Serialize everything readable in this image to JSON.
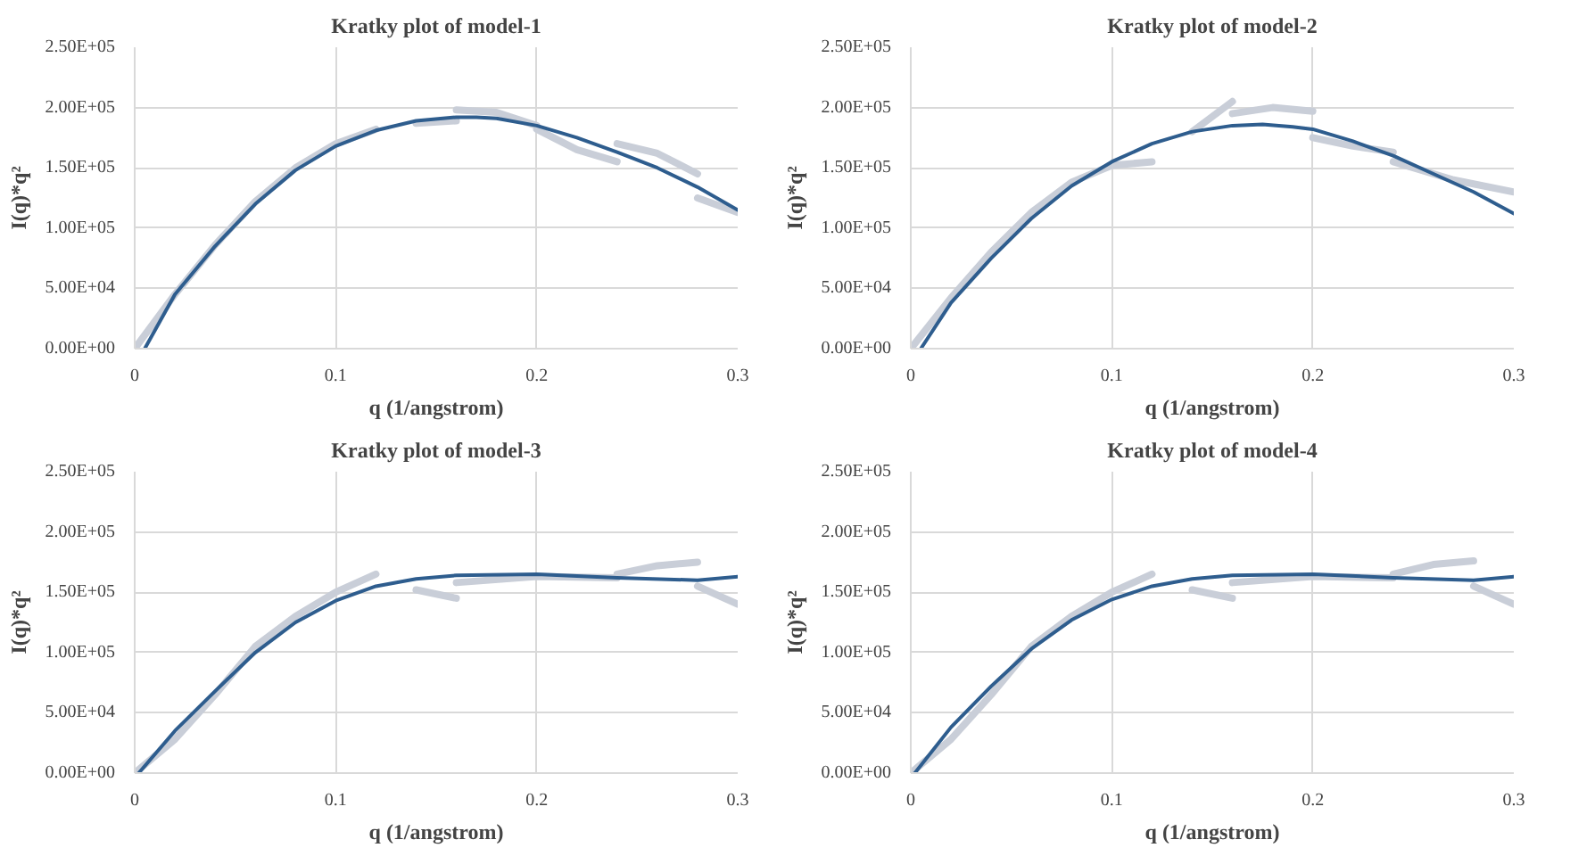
{
  "chart_data": [
    {
      "type": "line",
      "title": "Kratky plot of model-1",
      "xlabel": "q (1/angstrom)",
      "ylabel": "I(q)*q²",
      "xlim": [
        0,
        0.3
      ],
      "xticks": [
        0,
        0.1,
        0.2,
        0.3
      ],
      "ylim": [
        0,
        250000
      ],
      "yticks": [
        {
          "value": 0,
          "label": "0.00E+00"
        },
        {
          "value": 50000,
          "label": "5.00E+04"
        },
        {
          "value": 100000,
          "label": "1.00E+05"
        },
        {
          "value": 150000,
          "label": "1.50E+05"
        },
        {
          "value": 200000,
          "label": "2.00E+05"
        },
        {
          "value": 250000,
          "label": "2.50E+05"
        }
      ],
      "grid": true,
      "series": [
        {
          "color": "#c9ced8",
          "x": [
            0,
            0.02,
            0.04,
            0.06,
            0.08,
            0.1,
            0.12
          ],
          "values": [
            0,
            45000,
            86000,
            122000,
            150000,
            170000,
            182000
          ]
        },
        {
          "color": "#c9ced8",
          "x": [
            0.14,
            0.16
          ],
          "values": [
            187000,
            189000
          ]
        },
        {
          "color": "#c9ced8",
          "x": [
            0.16,
            0.18,
            0.2
          ],
          "values": [
            198000,
            196000,
            185000
          ]
        },
        {
          "color": "#c9ced8",
          "x": [
            0.2,
            0.22,
            0.24
          ],
          "values": [
            182000,
            165000,
            155000
          ]
        },
        {
          "color": "#c9ced8",
          "x": [
            0.24,
            0.26,
            0.28
          ],
          "values": [
            170000,
            162000,
            145000
          ]
        },
        {
          "color": "#c9ced8",
          "x": [
            0.28,
            0.3
          ],
          "values": [
            125000,
            113000
          ]
        },
        {
          "color": "#2e5d8e",
          "x": [
            0.005,
            0.02,
            0.04,
            0.06,
            0.08,
            0.1,
            0.12,
            0.14,
            0.16,
            0.17,
            0.18,
            0.2,
            0.22,
            0.24,
            0.26,
            0.28,
            0.3
          ],
          "values": [
            0,
            45000,
            85000,
            120000,
            148000,
            168000,
            181000,
            189000,
            192000,
            192000,
            191000,
            185000,
            175000,
            163000,
            150000,
            134000,
            115000
          ]
        }
      ]
    },
    {
      "type": "line",
      "title": "Kratky plot of model-2",
      "xlabel": "q (1/angstrom)",
      "ylabel": "I(q)*q²",
      "xlim": [
        0,
        0.3
      ],
      "xticks": [
        0,
        0.1,
        0.2,
        0.3
      ],
      "ylim": [
        0,
        250000
      ],
      "yticks": [
        {
          "value": 0,
          "label": "0.00E+00"
        },
        {
          "value": 50000,
          "label": "5.00E+04"
        },
        {
          "value": 100000,
          "label": "1.00E+05"
        },
        {
          "value": 150000,
          "label": "1.50E+05"
        },
        {
          "value": 200000,
          "label": "2.00E+05"
        },
        {
          "value": 250000,
          "label": "2.50E+05"
        }
      ],
      "grid": true,
      "series": [
        {
          "color": "#c9ced8",
          "x": [
            0,
            0.02,
            0.04,
            0.06,
            0.08,
            0.1,
            0.12
          ],
          "values": [
            0,
            42000,
            80000,
            113000,
            138000,
            152000,
            155000
          ]
        },
        {
          "color": "#c9ced8",
          "x": [
            0.14,
            0.16
          ],
          "values": [
            180000,
            205000
          ]
        },
        {
          "color": "#c9ced8",
          "x": [
            0.16,
            0.18,
            0.2
          ],
          "values": [
            195000,
            200000,
            197000
          ]
        },
        {
          "color": "#c9ced8",
          "x": [
            0.2,
            0.22,
            0.24
          ],
          "values": [
            175000,
            168000,
            163000
          ]
        },
        {
          "color": "#c9ced8",
          "x": [
            0.24,
            0.27,
            0.3
          ],
          "values": [
            155000,
            140000,
            130000
          ]
        },
        {
          "color": "#2e5d8e",
          "x": [
            0.005,
            0.02,
            0.04,
            0.06,
            0.08,
            0.1,
            0.12,
            0.14,
            0.16,
            0.175,
            0.19,
            0.2,
            0.22,
            0.24,
            0.26,
            0.28,
            0.3
          ],
          "values": [
            0,
            38000,
            75000,
            108000,
            135000,
            155000,
            170000,
            180000,
            185000,
            186000,
            184000,
            182000,
            172000,
            160000,
            145000,
            130000,
            112000
          ]
        }
      ]
    },
    {
      "type": "line",
      "title": "Kratky plot of model-3",
      "xlabel": "q (1/angstrom)",
      "ylabel": "I(q)*q²",
      "xlim": [
        0,
        0.3
      ],
      "xticks": [
        0,
        0.1,
        0.2,
        0.3
      ],
      "ylim": [
        0,
        250000
      ],
      "yticks": [
        {
          "value": 0,
          "label": "0.00E+00"
        },
        {
          "value": 50000,
          "label": "5.00E+04"
        },
        {
          "value": 100000,
          "label": "1.00E+05"
        },
        {
          "value": 150000,
          "label": "1.50E+05"
        },
        {
          "value": 200000,
          "label": "2.00E+05"
        },
        {
          "value": 250000,
          "label": "2.50E+05"
        }
      ],
      "grid": true,
      "series": [
        {
          "color": "#c9ced8",
          "x": [
            0,
            0.02,
            0.04,
            0.06,
            0.08,
            0.1,
            0.12
          ],
          "values": [
            0,
            28000,
            65000,
            105000,
            130000,
            150000,
            165000
          ]
        },
        {
          "color": "#c9ced8",
          "x": [
            0.14,
            0.16
          ],
          "values": [
            152000,
            145000
          ]
        },
        {
          "color": "#c9ced8",
          "x": [
            0.16,
            0.2,
            0.24
          ],
          "values": [
            158000,
            163000,
            162000
          ]
        },
        {
          "color": "#c9ced8",
          "x": [
            0.24,
            0.26,
            0.28
          ],
          "values": [
            165000,
            172000,
            175000
          ]
        },
        {
          "color": "#c9ced8",
          "x": [
            0.28,
            0.3
          ],
          "values": [
            155000,
            140000
          ]
        },
        {
          "color": "#2e5d8e",
          "x": [
            0.002,
            0.02,
            0.04,
            0.06,
            0.08,
            0.1,
            0.12,
            0.14,
            0.16,
            0.2,
            0.24,
            0.28,
            0.3
          ],
          "values": [
            0,
            35000,
            68000,
            100000,
            125000,
            143000,
            155000,
            161000,
            164000,
            165000,
            162000,
            160000,
            163000
          ]
        }
      ]
    },
    {
      "type": "line",
      "title": "Kratky plot of model-4",
      "xlabel": "q (1/angstrom)",
      "ylabel": "I(q)*q²",
      "xlim": [
        0,
        0.3
      ],
      "xticks": [
        0,
        0.1,
        0.2,
        0.3
      ],
      "ylim": [
        0,
        250000
      ],
      "yticks": [
        {
          "value": 0,
          "label": "0.00E+00"
        },
        {
          "value": 50000,
          "label": "5.00E+04"
        },
        {
          "value": 100000,
          "label": "1.00E+05"
        },
        {
          "value": 150000,
          "label": "1.50E+05"
        },
        {
          "value": 200000,
          "label": "2.00E+05"
        },
        {
          "value": 250000,
          "label": "2.50E+05"
        }
      ],
      "grid": true,
      "series": [
        {
          "color": "#c9ced8",
          "x": [
            0,
            0.02,
            0.04,
            0.06,
            0.08,
            0.1,
            0.12
          ],
          "values": [
            0,
            28000,
            65000,
            105000,
            130000,
            150000,
            165000
          ]
        },
        {
          "color": "#c9ced8",
          "x": [
            0.14,
            0.16
          ],
          "values": [
            152000,
            145000
          ]
        },
        {
          "color": "#c9ced8",
          "x": [
            0.16,
            0.2,
            0.24
          ],
          "values": [
            158000,
            163000,
            162000
          ]
        },
        {
          "color": "#c9ced8",
          "x": [
            0.24,
            0.26,
            0.28
          ],
          "values": [
            165000,
            173000,
            176000
          ]
        },
        {
          "color": "#c9ced8",
          "x": [
            0.28,
            0.3
          ],
          "values": [
            155000,
            140000
          ]
        },
        {
          "color": "#2e5d8e",
          "x": [
            0.002,
            0.02,
            0.04,
            0.06,
            0.08,
            0.1,
            0.12,
            0.14,
            0.16,
            0.2,
            0.24,
            0.28,
            0.3
          ],
          "values": [
            0,
            38000,
            72000,
            103000,
            127000,
            144000,
            155000,
            161000,
            164000,
            165000,
            162000,
            160000,
            163000
          ]
        }
      ]
    }
  ]
}
